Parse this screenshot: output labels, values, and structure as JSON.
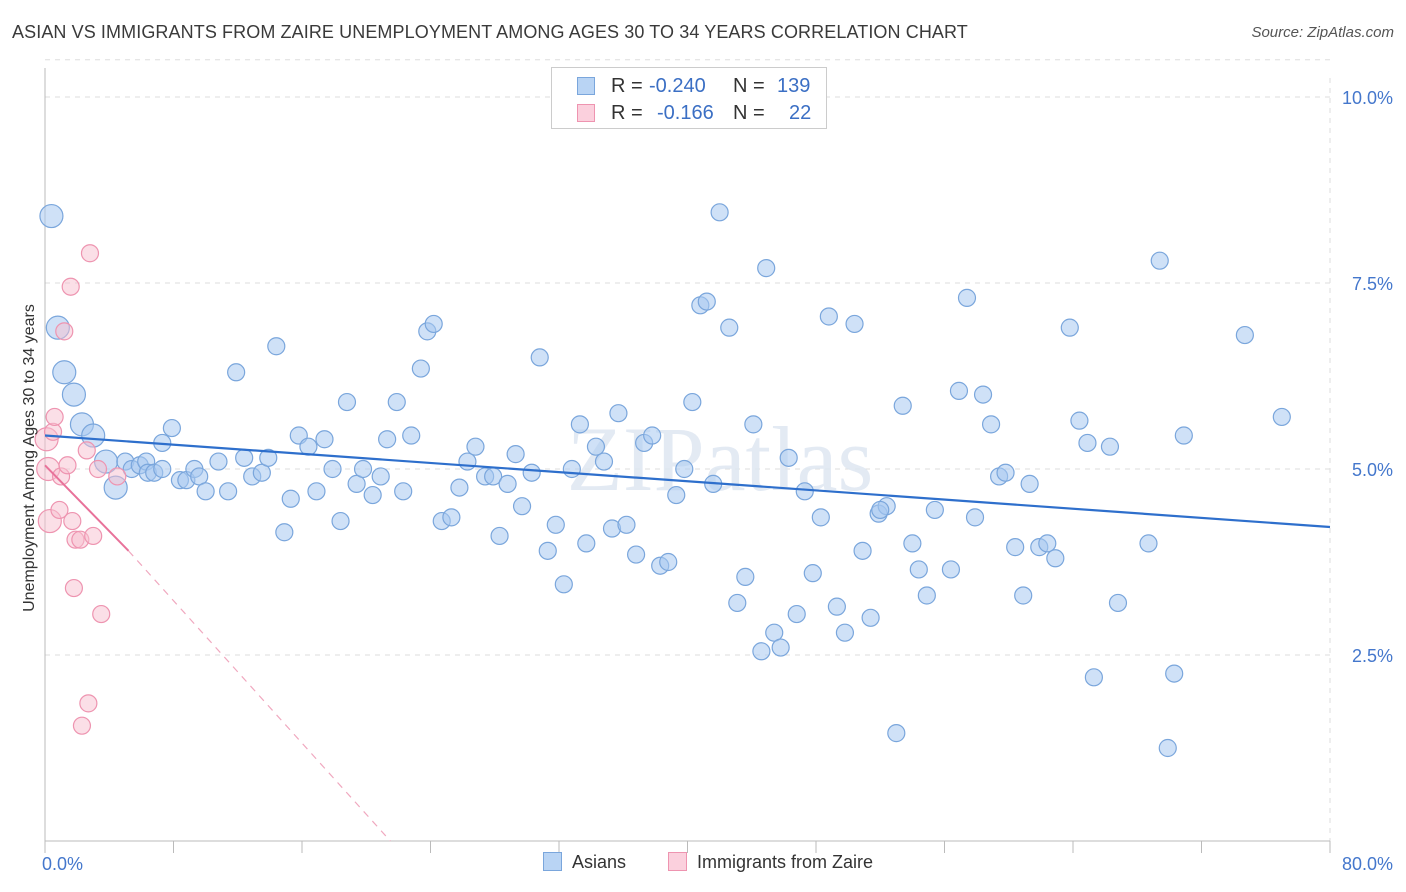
{
  "title": "ASIAN VS IMMIGRANTS FROM ZAIRE UNEMPLOYMENT AMONG AGES 30 TO 34 YEARS CORRELATION CHART",
  "source": "Source: ZipAtlas.com",
  "watermark": "ZIPatlas",
  "legend_box": {
    "rows": [
      {
        "r_label": "R =",
        "r_value": "-0.240",
        "n_label": "N =",
        "n_value": "139"
      },
      {
        "r_label": "R =",
        "r_value": "-0.166",
        "n_label": "N =",
        "n_value": "22"
      }
    ]
  },
  "bottom_legend": {
    "asians": "Asians",
    "zaire": "Immigrants from Zaire"
  },
  "colors": {
    "asian_fill": "#a8c8f0",
    "asian_stroke": "#7aa6dc",
    "asian_line": "#2e6fcc",
    "zaire_fill": "#f8c0d0",
    "zaire_stroke": "#ee94b0",
    "zaire_line": "#e8729a",
    "axis_text": "#4477cc",
    "grid": "#dddddd"
  },
  "chart_data": {
    "type": "scatter",
    "title": "ASIAN VS IMMIGRANTS FROM ZAIRE UNEMPLOYMENT AMONG AGES 30 TO 34 YEARS CORRELATION CHART",
    "xlabel": "",
    "ylabel": "Unemployment Among Ages 30 to 34 years",
    "xlim": [
      0,
      80
    ],
    "ylim": [
      0,
      10.5
    ],
    "x_tick_labels": [
      {
        "x": 0,
        "label": "0.0%"
      },
      {
        "x": 80,
        "label": "80.0%"
      }
    ],
    "y_tick_labels": [
      {
        "y": 2.5,
        "label": "2.5%"
      },
      {
        "y": 5.0,
        "label": "5.0%"
      },
      {
        "y": 7.5,
        "label": "7.5%"
      },
      {
        "y": 10.0,
        "label": "10.0%"
      }
    ],
    "grid": true,
    "series": [
      {
        "name": "Asians",
        "color": "#a8c8f0",
        "r": -0.24,
        "n": 139,
        "trend": {
          "x": [
            0,
            80
          ],
          "y": [
            5.45,
            4.22
          ]
        },
        "points": [
          {
            "x": 0.4,
            "y": 8.4,
            "size": "l"
          },
          {
            "x": 0.8,
            "y": 6.9,
            "size": "l"
          },
          {
            "x": 1.2,
            "y": 6.3,
            "size": "l"
          },
          {
            "x": 1.8,
            "y": 6.0,
            "size": "l"
          },
          {
            "x": 2.3,
            "y": 5.6,
            "size": "l"
          },
          {
            "x": 3.0,
            "y": 5.45,
            "size": "l"
          },
          {
            "x": 3.8,
            "y": 5.1,
            "size": "l"
          },
          {
            "x": 4.4,
            "y": 4.75,
            "size": "l"
          },
          {
            "x": 5.0,
            "y": 5.1
          },
          {
            "x": 5.4,
            "y": 5.0
          },
          {
            "x": 5.9,
            "y": 5.05
          },
          {
            "x": 6.3,
            "y": 5.1
          },
          {
            "x": 6.4,
            "y": 4.95
          },
          {
            "x": 6.8,
            "y": 4.95
          },
          {
            "x": 7.3,
            "y": 5.0
          },
          {
            "x": 7.3,
            "y": 5.35
          },
          {
            "x": 7.9,
            "y": 5.55
          },
          {
            "x": 8.4,
            "y": 4.85
          },
          {
            "x": 8.8,
            "y": 4.85
          },
          {
            "x": 9.3,
            "y": 5.0
          },
          {
            "x": 9.6,
            "y": 4.9
          },
          {
            "x": 10.0,
            "y": 4.7
          },
          {
            "x": 10.8,
            "y": 5.1
          },
          {
            "x": 11.4,
            "y": 4.7
          },
          {
            "x": 11.9,
            "y": 6.3
          },
          {
            "x": 12.4,
            "y": 5.15
          },
          {
            "x": 12.9,
            "y": 4.9
          },
          {
            "x": 13.5,
            "y": 4.95
          },
          {
            "x": 13.9,
            "y": 5.15
          },
          {
            "x": 14.4,
            "y": 6.65
          },
          {
            "x": 14.9,
            "y": 4.15
          },
          {
            "x": 15.3,
            "y": 4.6
          },
          {
            "x": 15.8,
            "y": 5.45
          },
          {
            "x": 16.4,
            "y": 5.3
          },
          {
            "x": 16.9,
            "y": 4.7
          },
          {
            "x": 17.4,
            "y": 5.4
          },
          {
            "x": 17.9,
            "y": 5.0
          },
          {
            "x": 18.4,
            "y": 4.3
          },
          {
            "x": 18.8,
            "y": 5.9
          },
          {
            "x": 19.4,
            "y": 4.8
          },
          {
            "x": 19.8,
            "y": 5.0
          },
          {
            "x": 20.4,
            "y": 4.65
          },
          {
            "x": 20.9,
            "y": 4.9
          },
          {
            "x": 21.3,
            "y": 5.4
          },
          {
            "x": 21.9,
            "y": 5.9
          },
          {
            "x": 22.3,
            "y": 4.7
          },
          {
            "x": 22.8,
            "y": 5.45
          },
          {
            "x": 23.4,
            "y": 6.35
          },
          {
            "x": 23.8,
            "y": 6.85
          },
          {
            "x": 24.2,
            "y": 6.95
          },
          {
            "x": 24.7,
            "y": 4.3
          },
          {
            "x": 25.3,
            "y": 4.35
          },
          {
            "x": 25.8,
            "y": 4.75
          },
          {
            "x": 26.3,
            "y": 5.1
          },
          {
            "x": 26.8,
            "y": 5.3
          },
          {
            "x": 27.4,
            "y": 4.9
          },
          {
            "x": 27.9,
            "y": 4.9
          },
          {
            "x": 28.3,
            "y": 4.1
          },
          {
            "x": 28.8,
            "y": 4.8
          },
          {
            "x": 29.3,
            "y": 5.2
          },
          {
            "x": 29.7,
            "y": 4.5
          },
          {
            "x": 30.3,
            "y": 4.95
          },
          {
            "x": 30.8,
            "y": 6.5
          },
          {
            "x": 31.3,
            "y": 3.9
          },
          {
            "x": 31.8,
            "y": 4.25
          },
          {
            "x": 32.3,
            "y": 3.45
          },
          {
            "x": 32.8,
            "y": 5.0
          },
          {
            "x": 33.3,
            "y": 5.6
          },
          {
            "x": 33.7,
            "y": 4.0
          },
          {
            "x": 34.3,
            "y": 5.3
          },
          {
            "x": 34.8,
            "y": 5.1
          },
          {
            "x": 35.3,
            "y": 4.2
          },
          {
            "x": 35.7,
            "y": 5.75
          },
          {
            "x": 36.2,
            "y": 4.25
          },
          {
            "x": 36.8,
            "y": 3.85
          },
          {
            "x": 37.3,
            "y": 5.35
          },
          {
            "x": 37.8,
            "y": 5.45
          },
          {
            "x": 38.3,
            "y": 3.7
          },
          {
            "x": 38.8,
            "y": 3.75
          },
          {
            "x": 39.3,
            "y": 4.65
          },
          {
            "x": 39.8,
            "y": 5.0
          },
          {
            "x": 40.3,
            "y": 5.9
          },
          {
            "x": 40.8,
            "y": 7.2
          },
          {
            "x": 41.2,
            "y": 7.25
          },
          {
            "x": 41.6,
            "y": 4.8
          },
          {
            "x": 42.0,
            "y": 8.45
          },
          {
            "x": 42.6,
            "y": 6.9
          },
          {
            "x": 43.1,
            "y": 3.2
          },
          {
            "x": 43.6,
            "y": 3.55
          },
          {
            "x": 44.1,
            "y": 5.6
          },
          {
            "x": 44.6,
            "y": 2.55
          },
          {
            "x": 44.9,
            "y": 7.7
          },
          {
            "x": 45.4,
            "y": 2.8
          },
          {
            "x": 45.8,
            "y": 2.6
          },
          {
            "x": 46.3,
            "y": 5.15
          },
          {
            "x": 46.8,
            "y": 3.05
          },
          {
            "x": 47.3,
            "y": 4.7
          },
          {
            "x": 47.8,
            "y": 3.6
          },
          {
            "x": 48.3,
            "y": 4.35
          },
          {
            "x": 48.8,
            "y": 7.05
          },
          {
            "x": 49.3,
            "y": 3.15
          },
          {
            "x": 49.8,
            "y": 2.8
          },
          {
            "x": 50.4,
            "y": 6.95
          },
          {
            "x": 50.9,
            "y": 3.9
          },
          {
            "x": 51.4,
            "y": 3.0
          },
          {
            "x": 51.9,
            "y": 4.4
          },
          {
            "x": 52.4,
            "y": 4.5
          },
          {
            "x": 53.0,
            "y": 1.45
          },
          {
            "x": 53.4,
            "y": 5.85
          },
          {
            "x": 54.0,
            "y": 4.0
          },
          {
            "x": 54.4,
            "y": 3.65
          },
          {
            "x": 54.9,
            "y": 3.3
          },
          {
            "x": 55.4,
            "y": 4.45
          },
          {
            "x": 56.4,
            "y": 3.65
          },
          {
            "x": 56.9,
            "y": 6.05
          },
          {
            "x": 57.4,
            "y": 7.3
          },
          {
            "x": 57.9,
            "y": 4.35
          },
          {
            "x": 58.4,
            "y": 6.0
          },
          {
            "x": 58.9,
            "y": 5.6
          },
          {
            "x": 59.4,
            "y": 4.9
          },
          {
            "x": 59.8,
            "y": 4.95
          },
          {
            "x": 60.4,
            "y": 3.95
          },
          {
            "x": 60.9,
            "y": 3.3
          },
          {
            "x": 61.3,
            "y": 4.8
          },
          {
            "x": 61.9,
            "y": 3.95
          },
          {
            "x": 62.4,
            "y": 4.0
          },
          {
            "x": 62.9,
            "y": 3.8
          },
          {
            "x": 63.8,
            "y": 6.9
          },
          {
            "x": 64.4,
            "y": 5.65
          },
          {
            "x": 64.9,
            "y": 5.35
          },
          {
            "x": 65.3,
            "y": 2.2
          },
          {
            "x": 66.3,
            "y": 5.3
          },
          {
            "x": 66.8,
            "y": 3.2
          },
          {
            "x": 68.7,
            "y": 4.0
          },
          {
            "x": 69.4,
            "y": 7.8
          },
          {
            "x": 69.9,
            "y": 1.25
          },
          {
            "x": 70.3,
            "y": 2.25
          },
          {
            "x": 70.9,
            "y": 5.45
          },
          {
            "x": 74.7,
            "y": 6.8
          },
          {
            "x": 77.0,
            "y": 5.7
          },
          {
            "x": 52.0,
            "y": 4.45
          }
        ]
      },
      {
        "name": "Immigrants from Zaire",
        "color": "#f8c0d0",
        "r": -0.166,
        "n": 22,
        "trend": {
          "x": [
            0,
            5.2
          ],
          "y": [
            5.05,
            3.9
          ]
        },
        "trend_extended": {
          "x": [
            5.2,
            21.5
          ],
          "y": [
            3.9,
            0
          ]
        },
        "points": [
          {
            "x": 0.1,
            "y": 5.4,
            "size": "l"
          },
          {
            "x": 0.2,
            "y": 5.0,
            "size": "l"
          },
          {
            "x": 0.3,
            "y": 4.3,
            "size": "l"
          },
          {
            "x": 0.5,
            "y": 5.5
          },
          {
            "x": 0.6,
            "y": 5.7
          },
          {
            "x": 0.9,
            "y": 4.45
          },
          {
            "x": 1.0,
            "y": 4.9
          },
          {
            "x": 1.2,
            "y": 6.85
          },
          {
            "x": 1.4,
            "y": 5.05
          },
          {
            "x": 1.6,
            "y": 7.45
          },
          {
            "x": 1.7,
            "y": 4.3
          },
          {
            "x": 1.8,
            "y": 3.4
          },
          {
            "x": 1.9,
            "y": 4.05
          },
          {
            "x": 2.2,
            "y": 4.05
          },
          {
            "x": 2.3,
            "y": 1.55
          },
          {
            "x": 2.6,
            "y": 5.25
          },
          {
            "x": 2.7,
            "y": 1.85
          },
          {
            "x": 2.8,
            "y": 7.9
          },
          {
            "x": 3.0,
            "y": 4.1
          },
          {
            "x": 3.3,
            "y": 5.0
          },
          {
            "x": 3.5,
            "y": 3.05
          },
          {
            "x": 4.5,
            "y": 4.9
          }
        ]
      }
    ]
  }
}
